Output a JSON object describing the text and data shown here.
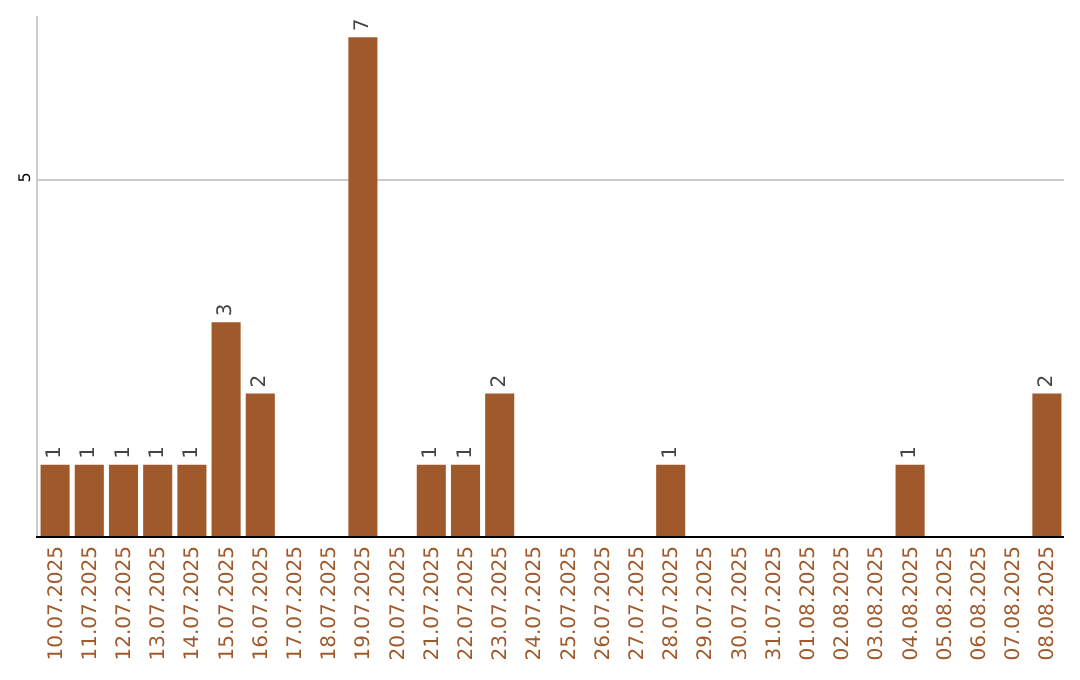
{
  "chart_data": {
    "type": "bar",
    "categories": [
      "10.07.2025",
      "11.07.2025",
      "12.07.2025",
      "13.07.2025",
      "14.07.2025",
      "15.07.2025",
      "16.07.2025",
      "17.07.2025",
      "18.07.2025",
      "19.07.2025",
      "20.07.2025",
      "21.07.2025",
      "22.07.2025",
      "23.07.2025",
      "24.07.2025",
      "25.07.2025",
      "26.07.2025",
      "27.07.2025",
      "28.07.2025",
      "29.07.2025",
      "30.07.2025",
      "31.07.2025",
      "01.08.2025",
      "02.08.2025",
      "03.08.2025",
      "04.08.2025",
      "05.08.2025",
      "06.08.2025",
      "07.08.2025",
      "08.08.2025"
    ],
    "values": [
      1,
      1,
      1,
      1,
      1,
      3,
      2,
      0,
      0,
      7,
      0,
      1,
      1,
      2,
      0,
      0,
      0,
      0,
      1,
      0,
      0,
      0,
      0,
      0,
      0,
      1,
      0,
      0,
      0,
      2
    ],
    "value_labels": [
      "1",
      "1",
      "1",
      "1",
      "1",
      "3",
      "2",
      null,
      null,
      "7",
      null,
      "1",
      "1",
      "2",
      null,
      null,
      null,
      null,
      "1",
      null,
      null,
      null,
      null,
      null,
      null,
      "1",
      null,
      null,
      null,
      "2"
    ],
    "color": "#a0592a",
    "ylim": [
      0,
      7.3
    ],
    "yticks": [
      5
    ],
    "grid": "y",
    "legend": false
  }
}
